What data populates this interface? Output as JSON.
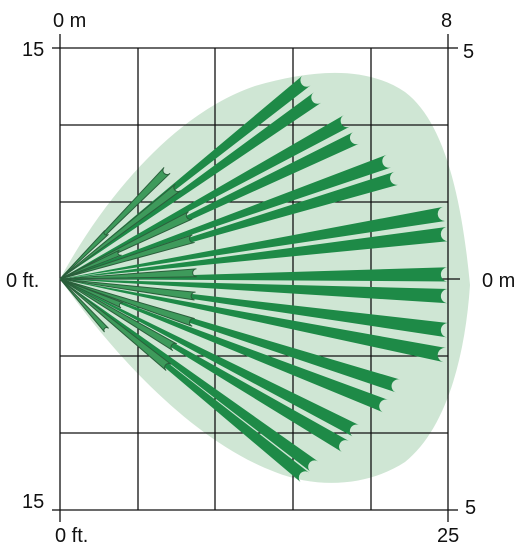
{
  "labels": {
    "top_left_m": "0 m",
    "top_right_m": "8",
    "left_top_ft": "15",
    "right_top_m": "5",
    "left_mid_ft": "0 ft.",
    "right_mid_m": "0 m",
    "left_bottom_ft": "15",
    "right_bottom_m": "5",
    "bottom_left_ft": "0 ft.",
    "bottom_right_ft": "25"
  },
  "colors": {
    "coverage_fill": "#cfe6d4",
    "long_beam": "#1e8a47",
    "short_beam": "#3e9a5b",
    "short_beam_outline": "#2a5f3b",
    "grid": "#111111"
  },
  "pattern": {
    "origin_ft": [
      0,
      0
    ],
    "long_beams_end_ft": [
      [
        15.9,
        12.8
      ],
      [
        16.6,
        11.7
      ],
      [
        18.5,
        10.2
      ],
      [
        19.1,
        9.1
      ],
      [
        21.2,
        7.6
      ],
      [
        21.7,
        6.5
      ],
      [
        24.8,
        4.2
      ],
      [
        25.0,
        2.9
      ],
      [
        25.0,
        0.3
      ],
      [
        25.0,
        -1.1
      ],
      [
        25.0,
        -3.3
      ],
      [
        24.8,
        -4.9
      ],
      [
        21.8,
        -6.9
      ],
      [
        21.0,
        -8.2
      ],
      [
        19.1,
        -9.8
      ],
      [
        18.4,
        -10.8
      ],
      [
        16.4,
        -12.1
      ],
      [
        15.8,
        -12.8
      ]
    ],
    "short_beams_end_ft": [
      [
        6.9,
        7.0
      ],
      [
        7.6,
        5.9
      ],
      [
        3.0,
        3.0
      ],
      [
        8.4,
        4.1
      ],
      [
        8.6,
        2.6
      ],
      [
        3.9,
        1.7
      ],
      [
        8.8,
        0.4
      ],
      [
        8.7,
        -1.1
      ],
      [
        4.0,
        -1.7
      ],
      [
        8.6,
        -2.8
      ],
      [
        3.0,
        -3.3
      ],
      [
        7.4,
        -4.4
      ],
      [
        7.0,
        -5.7
      ]
    ]
  }
}
